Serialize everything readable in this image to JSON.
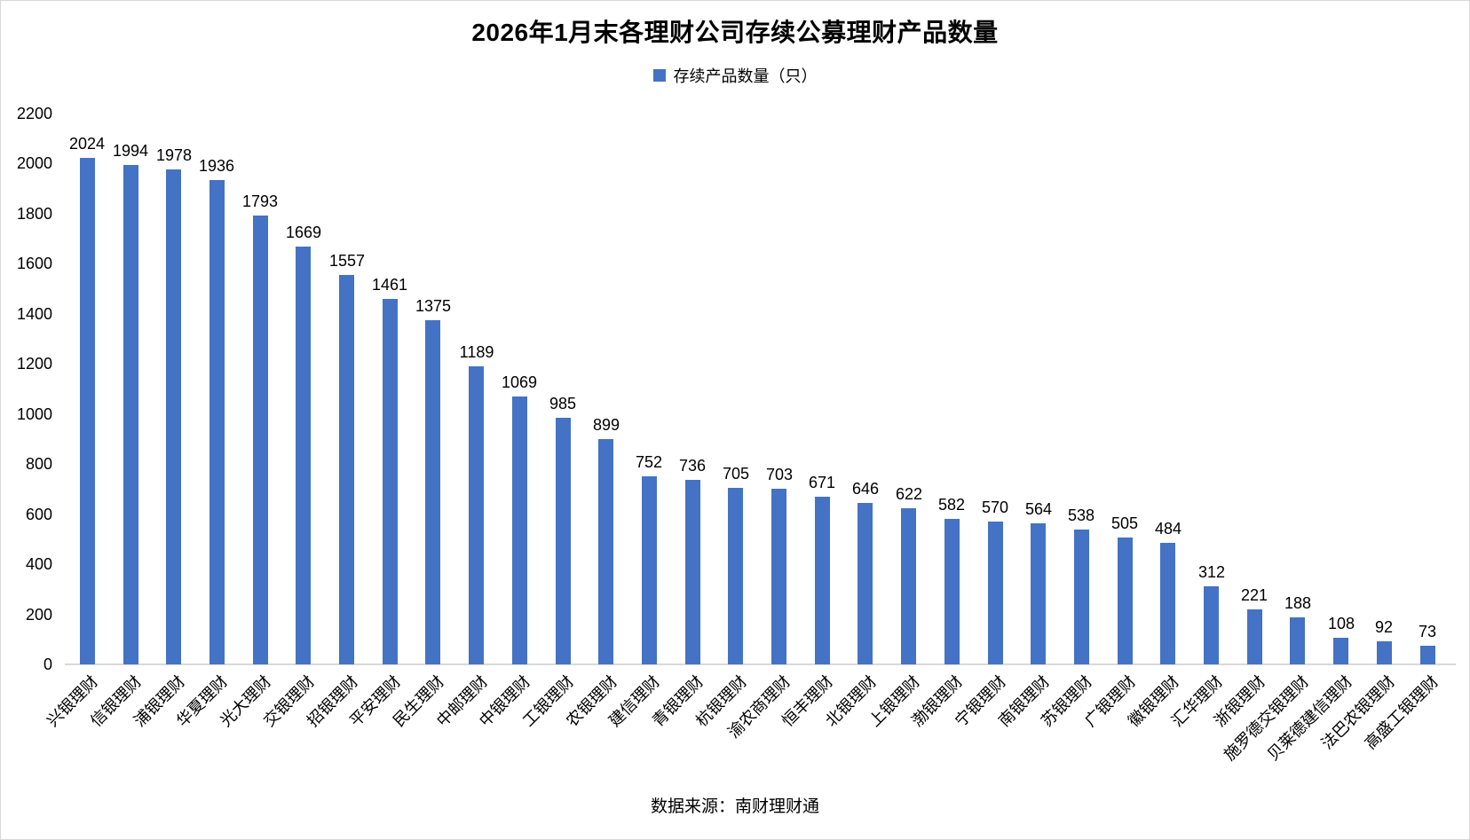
{
  "title": "2026年1月末各理财公司存续公募理财产品数量",
  "legend": {
    "label": "存续产品数量（只）",
    "color": "#4472C4"
  },
  "footer": "数据来源：南财理财通",
  "chart_data": {
    "type": "bar",
    "title": "2026年1月末各理财公司存续公募理财产品数量",
    "legend_entries": [
      "存续产品数量（只）"
    ],
    "legend_position": "top",
    "categories": [
      "兴银理财",
      "信银理财",
      "浦银理财",
      "华夏理财",
      "光大理财",
      "交银理财",
      "招银理财",
      "平安理财",
      "民生理财",
      "中邮理财",
      "中银理财",
      "工银理财",
      "农银理财",
      "建信理财",
      "青银理财",
      "杭银理财",
      "渝农商理财",
      "恒丰理财",
      "北银理财",
      "上银理财",
      "渤银理财",
      "宁银理财",
      "南银理财",
      "苏银理财",
      "广银理财",
      "徽银理财",
      "汇华理财",
      "浙银理财",
      "施罗德交银理财",
      "贝莱德建信理财",
      "法巴农银理财",
      "高盛工银理财"
    ],
    "values": [
      2024,
      1994,
      1978,
      1936,
      1793,
      1669,
      1557,
      1461,
      1375,
      1189,
      1069,
      985,
      899,
      752,
      736,
      705,
      703,
      671,
      646,
      622,
      582,
      570,
      564,
      538,
      505,
      484,
      312,
      221,
      188,
      108,
      92,
      73
    ],
    "xlabel": "",
    "ylabel": "",
    "ylim": [
      0,
      2200
    ],
    "ytick_step": 200,
    "yticks": [
      0,
      200,
      400,
      600,
      800,
      1000,
      1200,
      1400,
      1600,
      1800,
      2000,
      2200
    ],
    "grid": false,
    "data_labels": true,
    "bar_color": "#4472C4",
    "axis_line_color": "#D9D9D9",
    "source_note": "数据来源：南财理财通"
  }
}
